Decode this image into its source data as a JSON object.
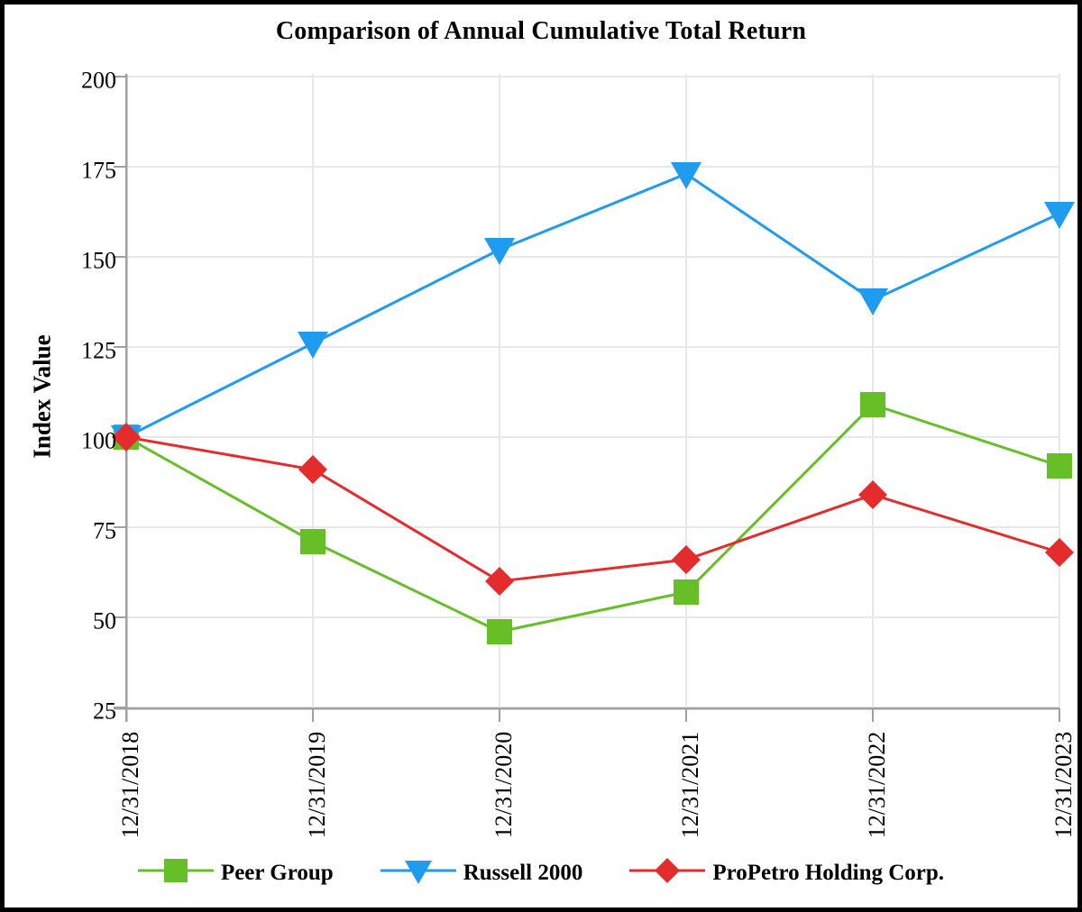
{
  "frame": {
    "background": "#ffffff",
    "border_color": "#000000"
  },
  "chart_data": {
    "type": "line",
    "title": "Comparison of Annual Cumulative Total Return",
    "ylabel": "Index Value",
    "xlabel": "",
    "categories": [
      "12/31/2018",
      "12/31/2019",
      "12/31/2020",
      "12/31/2021",
      "12/31/2022",
      "12/31/2023"
    ],
    "yticks": [
      200,
      175,
      150,
      125,
      100,
      75,
      50,
      25
    ],
    "ylim": [
      25,
      200
    ],
    "grid": true,
    "legend_position": "bottom",
    "axis_color": "#a0a0a0",
    "grid_color": "#e8e8e8",
    "text_color": "#000000",
    "series": [
      {
        "name": "Peer Group",
        "marker": "square",
        "color": "#66bf27",
        "values": [
          100,
          71,
          46,
          57,
          109,
          92
        ]
      },
      {
        "name": "Russell 2000",
        "marker": "triangle-down",
        "color": "#1f9bf0",
        "values": [
          100,
          126,
          152,
          173,
          138,
          162
        ]
      },
      {
        "name": "ProPetro Holding Corp.",
        "marker": "diamond",
        "color": "#e52c2c",
        "values": [
          100,
          91,
          60,
          66,
          84,
          68
        ]
      }
    ]
  }
}
